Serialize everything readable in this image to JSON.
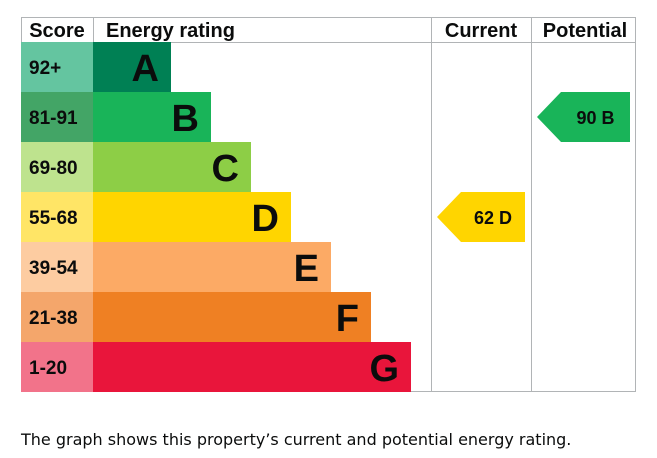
{
  "chart_data": {
    "type": "table",
    "headers": {
      "score": "Score",
      "rating": "Energy rating",
      "current": "Current",
      "potential": "Potential"
    },
    "bands": [
      {
        "letter": "A",
        "range": "92+",
        "color": "#008054",
        "score_color": "#64c5a0"
      },
      {
        "letter": "B",
        "range": "81-91",
        "color": "#19b459",
        "score_color": "#43a566"
      },
      {
        "letter": "C",
        "range": "69-80",
        "color": "#8dce46",
        "score_color": "#bee38e"
      },
      {
        "letter": "D",
        "range": "55-68",
        "color": "#ffd500",
        "score_color": "#ffe566"
      },
      {
        "letter": "E",
        "range": "39-54",
        "color": "#fcaa65",
        "score_color": "#fdcca1"
      },
      {
        "letter": "F",
        "range": "21-38",
        "color": "#ef8023",
        "score_color": "#f4a66b"
      },
      {
        "letter": "G",
        "range": "1-20",
        "color": "#e9153b",
        "score_color": "#f2738a"
      }
    ],
    "current": {
      "score": 62,
      "band": "D",
      "label": "62 D",
      "color": "#ffd500"
    },
    "potential": {
      "score": 90,
      "band": "B",
      "label": "90 B",
      "color": "#19b459"
    }
  },
  "caption": "The graph shows this property’s current and potential energy rating."
}
